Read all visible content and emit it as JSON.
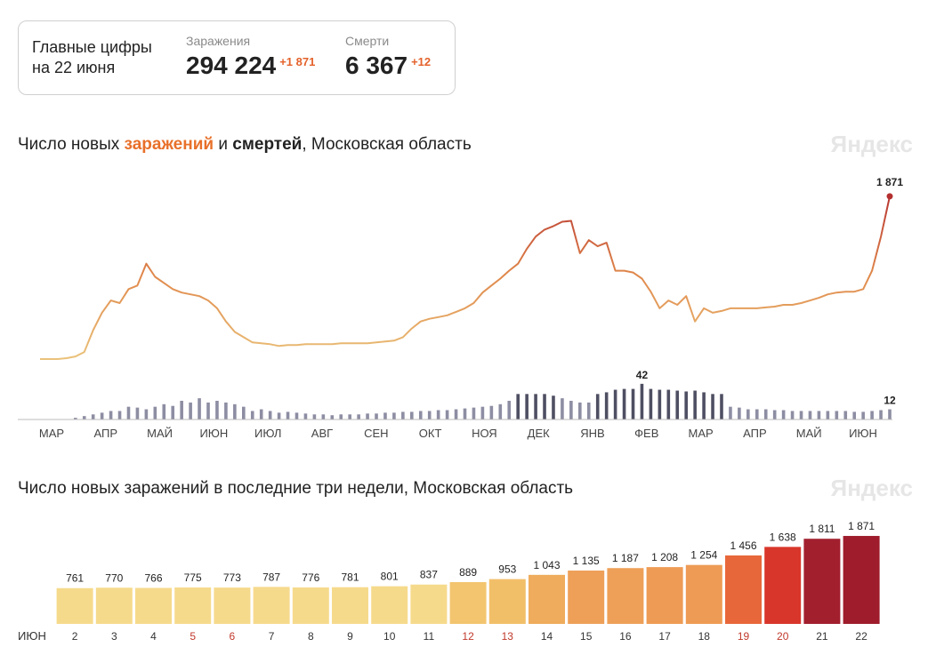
{
  "header": {
    "title_lines": [
      "Главные цифры",
      "на 22 июня"
    ],
    "cases": {
      "label": "Заражения",
      "total": "294 224",
      "delta": "+1 871"
    },
    "deaths": {
      "label": "Смерти",
      "total": "6 367",
      "delta": "+12"
    }
  },
  "chart_data": [
    {
      "type": "combo",
      "title_parts": [
        {
          "text": "Число новых "
        },
        {
          "text": "заражений",
          "color": "#e8702a",
          "bold": true
        },
        {
          "text": " и "
        },
        {
          "text": "смертей",
          "bold": true
        },
        {
          "text": ", Московская область"
        }
      ],
      "watermark": "Яндекс",
      "x_labels": [
        "МАР",
        "АПР",
        "МАЙ",
        "ИЮН",
        "ИЮЛ",
        "АВГ",
        "СЕН",
        "ОКТ",
        "НОЯ",
        "ДЕК",
        "ЯНВ",
        "ФЕВ",
        "МАР",
        "АПР",
        "МАЙ",
        "ИЮН"
      ],
      "ylim": [
        0,
        1900
      ],
      "y2lim": [
        0,
        45
      ],
      "series": [
        {
          "type": "line",
          "gradient": [
            "#eac27a",
            "#e0884b",
            "#b42f2f"
          ],
          "values": [
            10,
            10,
            10,
            20,
            40,
            90,
            340,
            540,
            680,
            650,
            810,
            850,
            1100,
            950,
            880,
            810,
            770,
            750,
            730,
            680,
            590,
            440,
            320,
            260,
            200,
            190,
            180,
            160,
            170,
            170,
            180,
            180,
            180,
            180,
            190,
            190,
            190,
            190,
            200,
            210,
            220,
            260,
            360,
            440,
            470,
            490,
            510,
            550,
            590,
            650,
            770,
            850,
            930,
            1020,
            1100,
            1270,
            1410,
            1490,
            1530,
            1580,
            1590,
            1220,
            1370,
            1300,
            1340,
            1020,
            1020,
            1000,
            930,
            780,
            590,
            680,
            630,
            730,
            440,
            590,
            540,
            560,
            590,
            590,
            590,
            590,
            600,
            610,
            630,
            630,
            650,
            680,
            710,
            750,
            770,
            780,
            780,
            810,
            1020,
            1410,
            1871
          ],
          "value_labels": [
            null,
            null,
            null,
            null,
            null,
            null,
            null,
            null,
            null,
            null,
            null,
            null,
            null,
            null,
            null,
            null,
            null,
            null,
            null,
            null,
            null,
            null,
            null,
            null,
            null,
            null,
            null,
            null,
            null,
            null,
            null,
            null,
            null,
            null,
            null,
            null,
            null,
            null,
            null,
            null,
            null,
            null,
            null,
            null,
            null,
            null,
            null,
            null,
            null,
            null,
            null,
            null,
            null,
            null,
            null,
            null,
            null,
            null,
            null,
            null,
            null,
            null,
            null,
            null,
            null,
            null,
            null,
            null,
            null,
            null,
            null,
            null,
            null,
            null,
            null,
            null,
            null,
            null,
            null,
            null,
            null,
            null,
            null,
            null,
            null,
            null,
            null,
            null,
            null,
            null,
            null,
            null,
            null,
            null,
            null,
            null,
            "1 871"
          ],
          "end_color": "#b42f2f"
        },
        {
          "type": "bar",
          "axis": "y2",
          "color": "#8d8da3",
          "peak_color": "#4f4f63",
          "values": [
            0,
            0,
            0,
            0,
            2,
            4,
            6,
            8,
            10,
            10,
            15,
            14,
            12,
            15,
            18,
            16,
            22,
            20,
            25,
            20,
            22,
            20,
            18,
            15,
            10,
            12,
            10,
            8,
            9,
            8,
            7,
            6,
            6,
            5,
            6,
            6,
            6,
            7,
            7,
            8,
            8,
            9,
            9,
            10,
            10,
            11,
            11,
            12,
            13,
            14,
            15,
            16,
            18,
            22,
            30,
            30,
            30,
            30,
            28,
            25,
            22,
            20,
            20,
            30,
            32,
            35,
            36,
            36,
            42,
            36,
            35,
            35,
            34,
            33,
            34,
            32,
            30,
            30,
            15,
            14,
            12,
            12,
            12,
            11,
            11,
            10,
            10,
            10,
            10,
            10,
            10,
            10,
            9,
            9,
            10,
            11,
            12
          ],
          "value_labels": [
            null,
            null,
            null,
            null,
            null,
            null,
            null,
            null,
            null,
            null,
            null,
            null,
            null,
            null,
            null,
            null,
            null,
            null,
            null,
            null,
            null,
            null,
            null,
            null,
            null,
            null,
            null,
            null,
            null,
            null,
            null,
            null,
            null,
            null,
            null,
            null,
            null,
            null,
            null,
            null,
            null,
            null,
            null,
            null,
            null,
            null,
            null,
            null,
            null,
            null,
            null,
            null,
            null,
            null,
            null,
            null,
            null,
            null,
            null,
            null,
            null,
            null,
            null,
            null,
            null,
            null,
            null,
            null,
            "42",
            null,
            null,
            null,
            null,
            null,
            null,
            null,
            null,
            null,
            null,
            null,
            null,
            null,
            null,
            null,
            null,
            null,
            null,
            null,
            null,
            null,
            null,
            null,
            null,
            null,
            null,
            null,
            "12"
          ]
        }
      ]
    },
    {
      "type": "bar",
      "title": "Число новых заражений в последние три недели, Московская область",
      "watermark": "Яндекс",
      "x_label": "ИЮН",
      "categories": [
        "2",
        "3",
        "4",
        "5",
        "6",
        "7",
        "8",
        "9",
        "10",
        "11",
        "12",
        "13",
        "14",
        "15",
        "16",
        "17",
        "18",
        "19",
        "20",
        "21",
        "22"
      ],
      "category_colors": [
        "#333",
        "#333",
        "#333",
        "#c0392b",
        "#c0392b",
        "#333",
        "#333",
        "#333",
        "#333",
        "#333",
        "#c0392b",
        "#c0392b",
        "#333",
        "#333",
        "#333",
        "#333",
        "#333",
        "#c0392b",
        "#c0392b",
        "#333",
        "#333"
      ],
      "values": [
        761,
        770,
        766,
        775,
        773,
        787,
        776,
        781,
        801,
        837,
        889,
        953,
        1043,
        1135,
        1187,
        1208,
        1254,
        1456,
        1638,
        1811,
        1871
      ],
      "value_labels": [
        "761",
        "770",
        "766",
        "775",
        "773",
        "787",
        "776",
        "781",
        "801",
        "837",
        "889",
        "953",
        "1 043",
        "1 135",
        "1 187",
        "1 208",
        "1 254",
        "1 456",
        "1 638",
        "1 811",
        "1 871"
      ],
      "colors": [
        "#f6da8c",
        "#f6da8c",
        "#f6da8c",
        "#f6da8c",
        "#f6da8c",
        "#f6da8c",
        "#f6da8c",
        "#f6da8c",
        "#f6da8c",
        "#f6da8c",
        "#f3c56f",
        "#f2bf69",
        "#efac5c",
        "#eea058",
        "#eea058",
        "#ee9b55",
        "#ee9b55",
        "#e8673a",
        "#d9362b",
        "#a21f2e",
        "#9e1c2c"
      ],
      "ylim": [
        0,
        1900
      ]
    }
  ]
}
